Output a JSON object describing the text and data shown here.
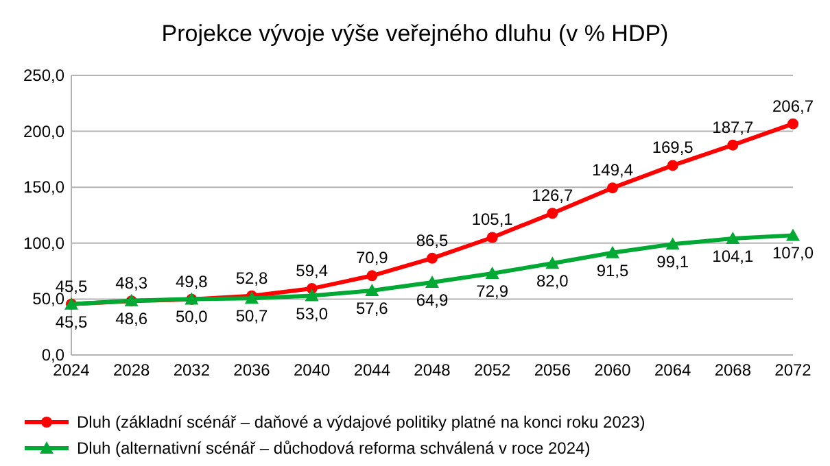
{
  "chart_data": {
    "type": "line",
    "title": "Projekce vývoje výše veřejného dluhu (v % HDP)",
    "categories": [
      "2024",
      "2028",
      "2032",
      "2036",
      "2040",
      "2044",
      "2048",
      "2052",
      "2056",
      "2060",
      "2064",
      "2068",
      "2072"
    ],
    "series": [
      {
        "name": "Dluh (základní scénář –  daňové a výdajové politiky platné na konci roku 2023)",
        "color": "#ff0000",
        "marker": "circle",
        "values": [
          45.5,
          48.3,
          49.8,
          52.8,
          59.4,
          70.9,
          86.5,
          105.1,
          126.7,
          149.4,
          169.5,
          187.7,
          206.7
        ],
        "value_labels": [
          "45,5",
          "48,3",
          "49,8",
          "52,8",
          "59,4",
          "70,9",
          "86,5",
          "105,1",
          "126,7",
          "149,4",
          "169,5",
          "187,7",
          "206,7"
        ]
      },
      {
        "name": "Dluh (alternativní scénář – důchodová reforma schválená v roce 2024)",
        "color": "#00a933",
        "marker": "triangle",
        "values": [
          45.5,
          48.6,
          50.0,
          50.7,
          53.0,
          57.6,
          64.9,
          72.9,
          82.0,
          91.5,
          99.1,
          104.1,
          107.0
        ],
        "value_labels": [
          "45,5",
          "48,6",
          "50,0",
          "50,7",
          "53,0",
          "57,6",
          "64,9",
          "72,9",
          "82,0",
          "91,5",
          "99,1",
          "104,1",
          "107,0"
        ]
      }
    ],
    "ylim": [
      0,
      250
    ],
    "yticks": [
      {
        "value": 0,
        "label": "0,0"
      },
      {
        "value": 50,
        "label": "50,0"
      },
      {
        "value": 100,
        "label": "100,0"
      },
      {
        "value": 150,
        "label": "150,0"
      },
      {
        "value": 200,
        "label": "200,0"
      },
      {
        "value": 250,
        "label": "250,0"
      }
    ],
    "grid": "y",
    "legend": "bottom",
    "line_style": "solid"
  }
}
